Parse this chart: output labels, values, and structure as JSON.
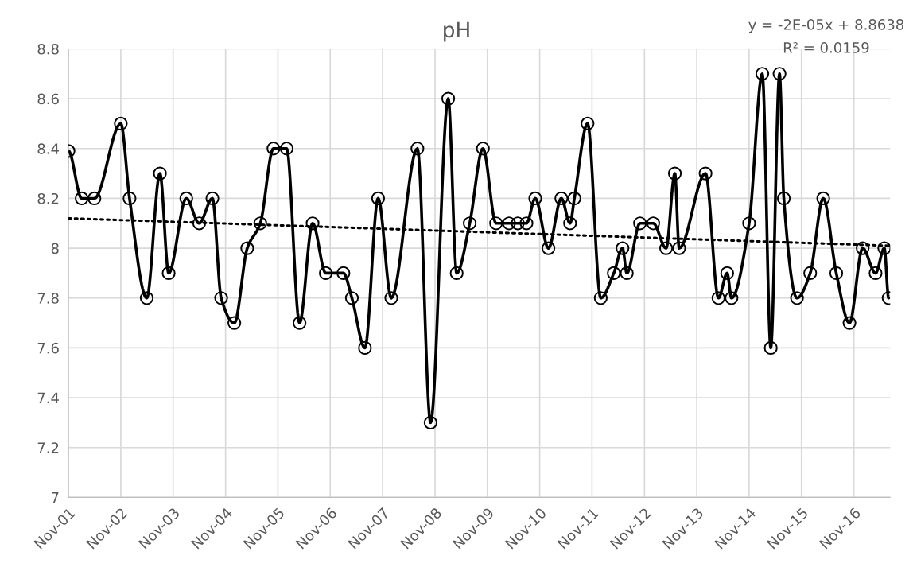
{
  "chart_data": {
    "type": "line",
    "title": "pH",
    "annotations": [
      "y = -2E-05x + 8.8638",
      "R² = 0.0159"
    ],
    "series": [
      {
        "color": "#000000",
        "marker": "circle",
        "line_style": "solid",
        "x": [
          "2001-11",
          "2002-02",
          "2002-05",
          "2002-11",
          "2003-01",
          "2003-05",
          "2003-08",
          "2003-10",
          "2004-02",
          "2004-05",
          "2004-08",
          "2004-10",
          "2005-01",
          "2005-04",
          "2005-07",
          "2005-10",
          "2006-01",
          "2006-04",
          "2006-07",
          "2006-10",
          "2007-02",
          "2007-04",
          "2007-07",
          "2007-10",
          "2008-01",
          "2008-07",
          "2008-10",
          "2009-02",
          "2009-04",
          "2009-07",
          "2009-10",
          "2010-01",
          "2010-04",
          "2010-06",
          "2010-08",
          "2010-10",
          "2011-01",
          "2011-04",
          "2011-06",
          "2011-07",
          "2011-10",
          "2012-01",
          "2012-04",
          "2012-06",
          "2012-07",
          "2012-10",
          "2013-01",
          "2013-04",
          "2013-06",
          "2013-07",
          "2014-01",
          "2014-04",
          "2014-06",
          "2014-07",
          "2014-11",
          "2015-02",
          "2015-04",
          "2015-06",
          "2015-07",
          "2015-10",
          "2016-01",
          "2016-04",
          "2016-07",
          "2016-10",
          "2017-01",
          "2017-04",
          "2017-06",
          "2017-07"
        ],
        "values": [
          8.39,
          8.2,
          8.2,
          8.5,
          8.2,
          7.8,
          8.3,
          7.9,
          8.2,
          8.1,
          8.2,
          7.8,
          7.7,
          8.0,
          8.1,
          8.4,
          8.4,
          7.7,
          8.1,
          7.9,
          7.9,
          7.8,
          7.6,
          8.2,
          7.8,
          8.4,
          7.3,
          8.6,
          7.9,
          8.1,
          8.4,
          8.1,
          8.1,
          8.1,
          8.1,
          8.2,
          8.0,
          8.2,
          8.1,
          8.2,
          8.5,
          7.8,
          7.9,
          8.0,
          7.9,
          8.1,
          8.1,
          8.0,
          8.3,
          8.0,
          8.3,
          7.8,
          7.9,
          7.8,
          8.1,
          8.7,
          7.6,
          8.7,
          8.2,
          7.8,
          7.9,
          8.2,
          7.9,
          7.7,
          8.0,
          7.9,
          8.0,
          7.8
        ]
      },
      {
        "color": "#000000",
        "marker": "none",
        "line_style": "dotted",
        "x": [
          "2001-11",
          "2017-07"
        ],
        "values": [
          8.12,
          8.01
        ]
      }
    ],
    "xlim": [
      "2001-11-01",
      "2017-07-12"
    ],
    "xticks": [
      {
        "value": "2001-11",
        "label": "Nov-01"
      },
      {
        "value": "2002-11",
        "label": "Nov-02"
      },
      {
        "value": "2003-11",
        "label": "Nov-03"
      },
      {
        "value": "2004-11",
        "label": "Nov-04"
      },
      {
        "value": "2005-11",
        "label": "Nov-05"
      },
      {
        "value": "2006-11",
        "label": "Nov-06"
      },
      {
        "value": "2007-11",
        "label": "Nov-07"
      },
      {
        "value": "2008-11",
        "label": "Nov-08"
      },
      {
        "value": "2009-11",
        "label": "Nov-09"
      },
      {
        "value": "2010-11",
        "label": "Nov-10"
      },
      {
        "value": "2011-11",
        "label": "Nov-11"
      },
      {
        "value": "2012-11",
        "label": "Nov-12"
      },
      {
        "value": "2013-11",
        "label": "Nov-13"
      },
      {
        "value": "2014-11",
        "label": "Nov-14"
      },
      {
        "value": "2015-11",
        "label": "Nov-15"
      },
      {
        "value": "2016-11",
        "label": "Nov-16"
      }
    ],
    "ylim": [
      7,
      8.8
    ],
    "yticks": [
      7,
      7.2,
      7.4,
      7.6,
      7.8,
      8,
      8.2,
      8.4,
      8.6,
      8.8
    ],
    "grid": true
  }
}
